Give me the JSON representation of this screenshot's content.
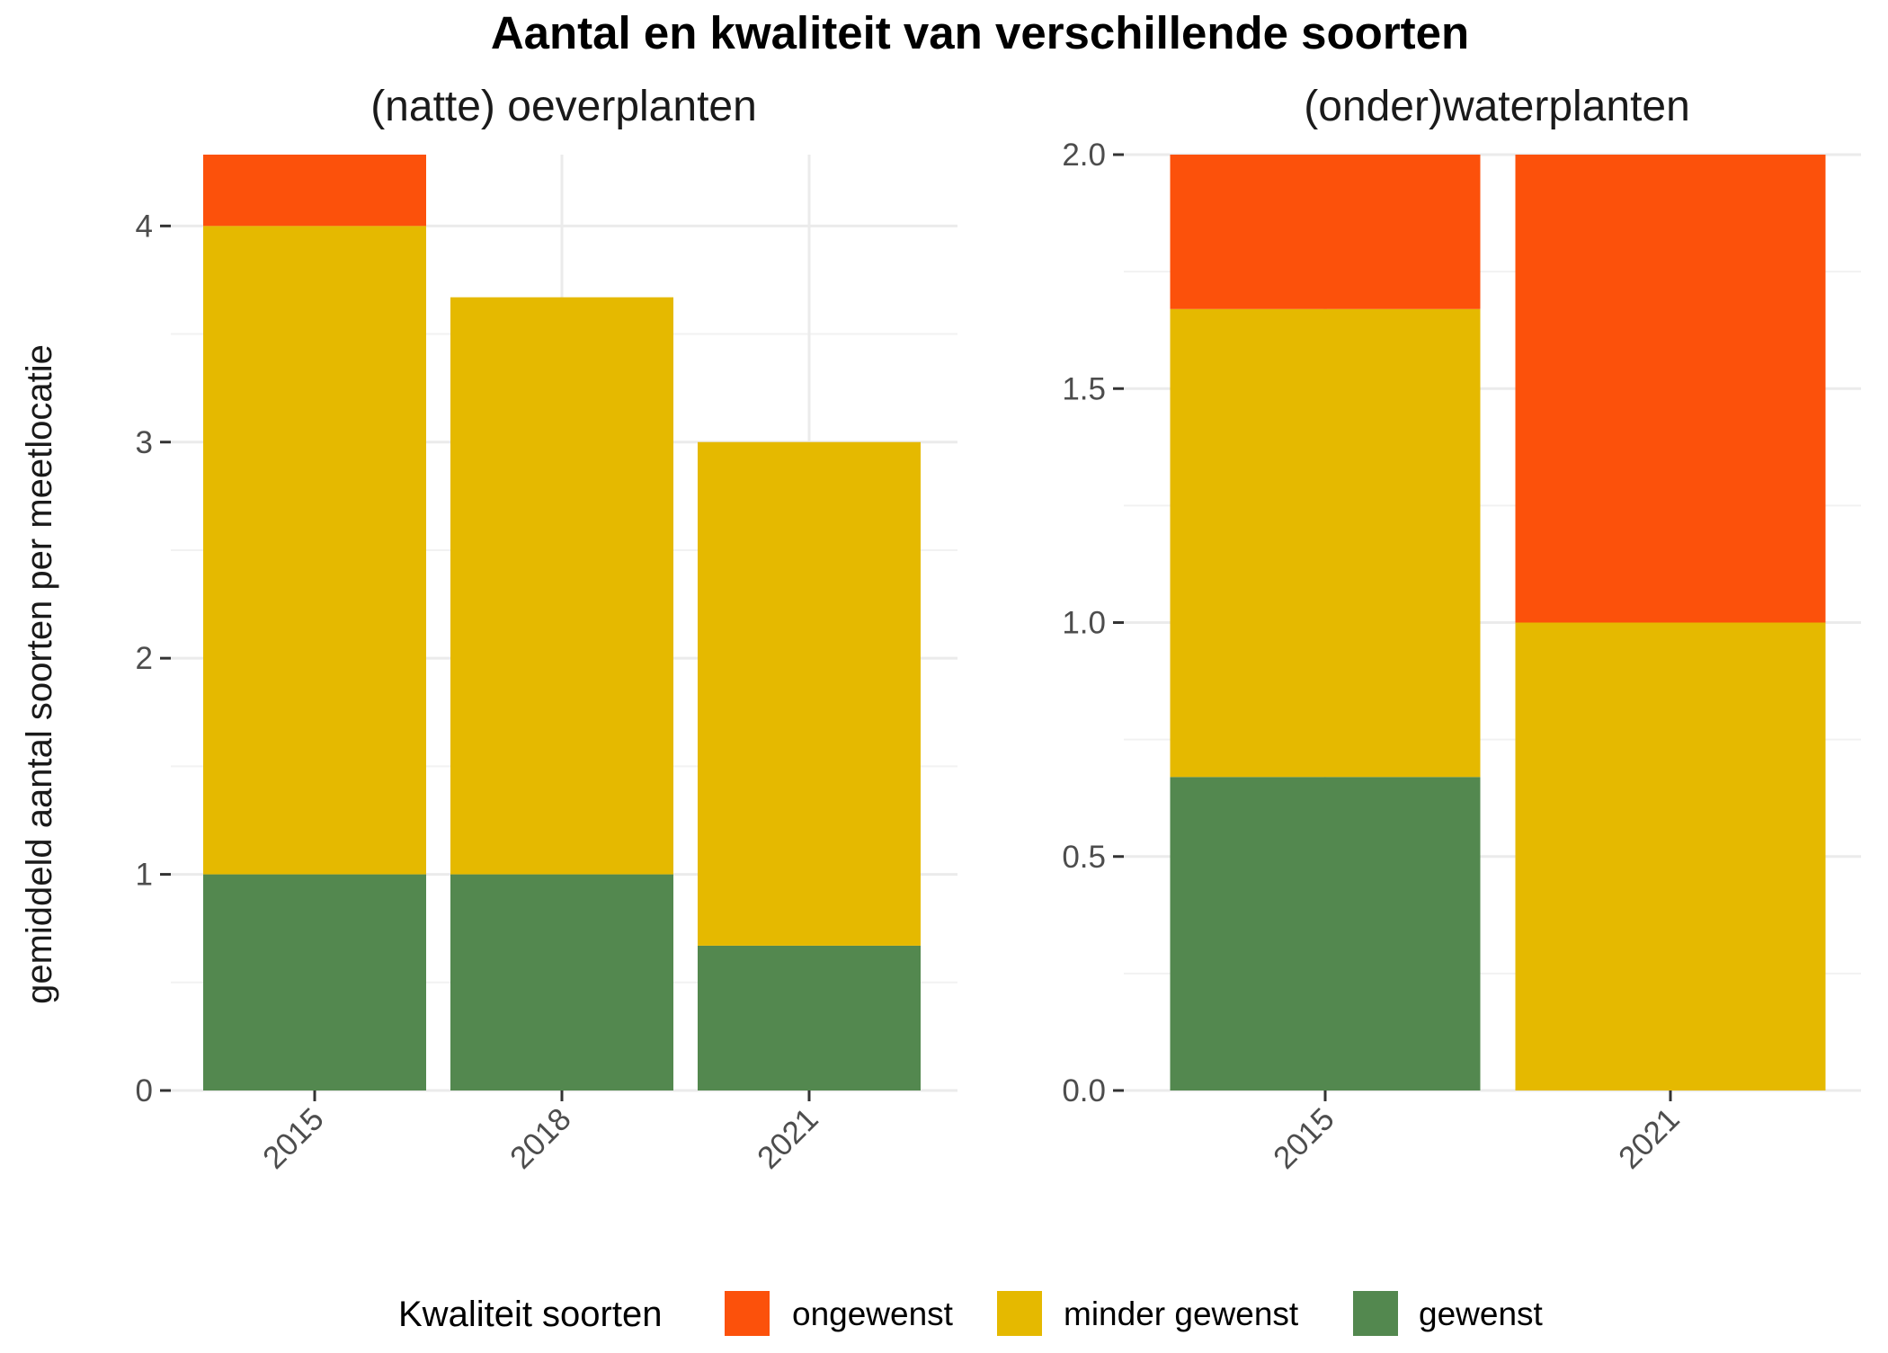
{
  "title": "Aantal en kwaliteit van verschillende soorten",
  "ylabel": "gemiddeld aantal soorten per meetlocatie",
  "legend": {
    "title": "Kwaliteit soorten",
    "position": "bottom",
    "entries": [
      {
        "label": "ongewenst",
        "color": "#FC510B"
      },
      {
        "label": "minder gewenst",
        "color": "#E5B900"
      },
      {
        "label": "gewenst",
        "color": "#53884F"
      }
    ]
  },
  "chart_data": [
    {
      "type": "bar",
      "stacked": true,
      "title": "(natte) oeverplanten",
      "categories": [
        "2015",
        "2018",
        "2021"
      ],
      "ylim": [
        0,
        4.33
      ],
      "yticks": [
        "0",
        "1",
        "2",
        "3",
        "4"
      ],
      "grid": true,
      "series": [
        {
          "name": "gewenst",
          "color": "#53884F",
          "values": [
            1.0,
            1.0,
            0.67
          ]
        },
        {
          "name": "minder gewenst",
          "color": "#E5B900",
          "values": [
            3.0,
            2.67,
            2.33
          ]
        },
        {
          "name": "ongewenst",
          "color": "#FC510B",
          "values": [
            0.33,
            0,
            0
          ]
        }
      ]
    },
    {
      "type": "bar",
      "stacked": true,
      "title": "(onder)waterplanten",
      "categories": [
        "2015",
        "2021"
      ],
      "ylim": [
        0,
        2.0
      ],
      "yticks": [
        "0.0",
        "0.5",
        "1.0",
        "1.5",
        "2.0"
      ],
      "grid": true,
      "series": [
        {
          "name": "gewenst",
          "color": "#53884F",
          "values": [
            0.67,
            0
          ]
        },
        {
          "name": "minder gewenst",
          "color": "#E5B900",
          "values": [
            1.0,
            1.0
          ]
        },
        {
          "name": "ongewenst",
          "color": "#FC510B",
          "values": [
            0.33,
            1.0
          ]
        }
      ]
    }
  ]
}
